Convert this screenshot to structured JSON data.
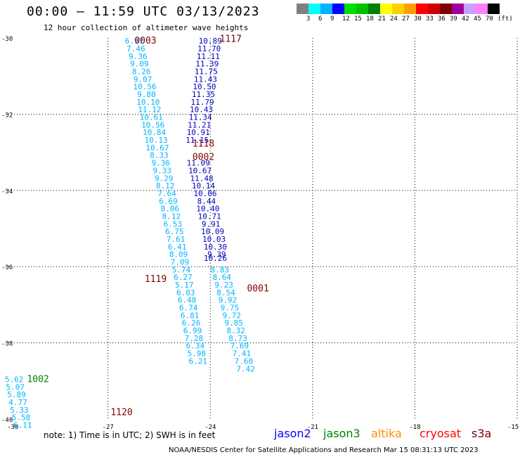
{
  "title": "00:00 – 11:59 UTC 03/13/2023",
  "subtitle": "12 hour collection of altimeter wave heights",
  "colorbar": {
    "colors": [
      "#808080",
      "#00ffff",
      "#00b4ff",
      "#0000ff",
      "#00e000",
      "#00c000",
      "#008000",
      "#ffff00",
      "#ffd000",
      "#ffa000",
      "#ff0000",
      "#d00000",
      "#800000",
      "#a000a0",
      "#c8a0ff",
      "#ff80ff",
      "#000000"
    ],
    "labels": [
      "3",
      "6",
      "9",
      "12",
      "15",
      "18",
      "21",
      "24",
      "27",
      "30",
      "33",
      "36",
      "39",
      "42",
      "45",
      "70"
    ],
    "unit": "(ft)"
  },
  "axes": {
    "lat_labels": [
      "-30",
      "-32",
      "-34",
      "-36",
      "-38",
      "-40"
    ],
    "lon_labels": [
      "-30",
      "-27",
      "-24",
      "-21",
      "-18",
      "-15"
    ]
  },
  "time_labels": [
    {
      "text": "0003",
      "lon": -25.9,
      "lat": -30.15,
      "color": "#800000"
    },
    {
      "text": "1117",
      "lon": -23.4,
      "lat": -30.1,
      "color": "#800000"
    },
    {
      "text": "1118",
      "lon": -24.2,
      "lat": -32.85,
      "color": "#800000"
    },
    {
      "text": "0002",
      "lon": -24.2,
      "lat": -33.2,
      "color": "#800000"
    },
    {
      "text": "1119",
      "lon": -25.6,
      "lat": -36.4,
      "color": "#800000"
    },
    {
      "text": "0001",
      "lon": -22.6,
      "lat": -36.65,
      "color": "#800000"
    },
    {
      "text": "1002",
      "lon": -29.05,
      "lat": -39.03,
      "color": "#008000"
    },
    {
      "text": "1120",
      "lon": -26.6,
      "lat": -39.9,
      "color": "#800000"
    }
  ],
  "tracks": [
    {
      "name": "track-0003-1119",
      "color": "#00b4ff",
      "points": [
        {
          "lon": -26.23,
          "lat": -30.15,
          "v": "6.97"
        },
        {
          "lon": -26.18,
          "lat": -30.35,
          "v": "7.46"
        },
        {
          "lon": -26.12,
          "lat": -30.55,
          "v": "9.36"
        },
        {
          "lon": -26.08,
          "lat": -30.75,
          "v": "9.09"
        },
        {
          "lon": -26.02,
          "lat": -30.95,
          "v": "8.26"
        },
        {
          "lon": -25.98,
          "lat": -31.15,
          "v": "9.07"
        },
        {
          "lon": -25.92,
          "lat": -31.35,
          "v": "10.56"
        },
        {
          "lon": -25.87,
          "lat": -31.55,
          "v": "9.80"
        },
        {
          "lon": -25.82,
          "lat": -31.75,
          "v": "10.10"
        },
        {
          "lon": -25.78,
          "lat": -31.95,
          "v": "11.12"
        },
        {
          "lon": -25.73,
          "lat": -32.15,
          "v": "10.61"
        },
        {
          "lon": -25.68,
          "lat": -32.35,
          "v": "10.56"
        },
        {
          "lon": -25.64,
          "lat": -32.55,
          "v": "10.84"
        },
        {
          "lon": -25.59,
          "lat": -32.75,
          "v": "10.13"
        },
        {
          "lon": -25.55,
          "lat": -32.95,
          "v": "10.67"
        },
        {
          "lon": -25.5,
          "lat": -33.15,
          "v": "8.33"
        },
        {
          "lon": -25.45,
          "lat": -33.35,
          "v": "9.36"
        },
        {
          "lon": -25.41,
          "lat": -33.55,
          "v": "9.33"
        },
        {
          "lon": -25.36,
          "lat": -33.75,
          "v": "9.29"
        },
        {
          "lon": -25.32,
          "lat": -33.95,
          "v": "8.12"
        },
        {
          "lon": -25.27,
          "lat": -34.15,
          "v": "7.64"
        },
        {
          "lon": -25.23,
          "lat": -34.35,
          "v": "6.69"
        },
        {
          "lon": -25.18,
          "lat": -34.55,
          "v": "8.06"
        },
        {
          "lon": -25.14,
          "lat": -34.75,
          "v": "8.12"
        },
        {
          "lon": -25.1,
          "lat": -34.95,
          "v": "6.53"
        },
        {
          "lon": -25.05,
          "lat": -35.15,
          "v": "6.75"
        },
        {
          "lon": -25.01,
          "lat": -35.35,
          "v": "7.61"
        },
        {
          "lon": -24.97,
          "lat": -35.55,
          "v": "6.41"
        },
        {
          "lon": -24.93,
          "lat": -35.75,
          "v": "8.09"
        },
        {
          "lon": -24.89,
          "lat": -35.95,
          "v": "7.09"
        },
        {
          "lon": -24.85,
          "lat": -36.15,
          "v": "5.74"
        },
        {
          "lon": -24.8,
          "lat": -36.35,
          "v": "6.27"
        },
        {
          "lon": -24.76,
          "lat": -36.55,
          "v": "5.17"
        },
        {
          "lon": -24.72,
          "lat": -36.75,
          "v": "6.03"
        },
        {
          "lon": -24.68,
          "lat": -36.95,
          "v": "6.48"
        },
        {
          "lon": -24.64,
          "lat": -37.15,
          "v": "6.74"
        },
        {
          "lon": -24.6,
          "lat": -37.35,
          "v": "6.81"
        },
        {
          "lon": -24.56,
          "lat": -37.55,
          "v": "6.26"
        },
        {
          "lon": -24.52,
          "lat": -37.75,
          "v": "6.99"
        },
        {
          "lon": -24.48,
          "lat": -37.95,
          "v": "7.28"
        },
        {
          "lon": -24.44,
          "lat": -38.15,
          "v": "6.34"
        },
        {
          "lon": -24.4,
          "lat": -38.35,
          "v": "5.98"
        },
        {
          "lon": -24.36,
          "lat": -38.55,
          "v": "6.21"
        }
      ]
    },
    {
      "name": "track-1117-0001",
      "color": "#0000c0",
      "points": [
        {
          "lon": -24.0,
          "lat": -30.15,
          "v": "10.89"
        },
        {
          "lon": -24.03,
          "lat": -30.35,
          "v": "11.70"
        },
        {
          "lon": -24.06,
          "lat": -30.55,
          "v": "11.11"
        },
        {
          "lon": -24.09,
          "lat": -30.75,
          "v": "11.39"
        },
        {
          "lon": -24.12,
          "lat": -30.95,
          "v": "11.75"
        },
        {
          "lon": -24.14,
          "lat": -31.15,
          "v": "11.43"
        },
        {
          "lon": -24.17,
          "lat": -31.35,
          "v": "10.50"
        },
        {
          "lon": -24.2,
          "lat": -31.55,
          "v": "11.35"
        },
        {
          "lon": -24.23,
          "lat": -31.75,
          "v": "11.79"
        },
        {
          "lon": -24.26,
          "lat": -31.95,
          "v": "10.43"
        },
        {
          "lon": -24.29,
          "lat": -32.15,
          "v": "11.34"
        },
        {
          "lon": -24.32,
          "lat": -32.35,
          "v": "11.21"
        },
        {
          "lon": -24.35,
          "lat": -32.55,
          "v": "10.91"
        },
        {
          "lon": -24.38,
          "lat": -32.75,
          "v": "11.15"
        },
        {
          "lon": -24.35,
          "lat": -33.35,
          "v": "11.09"
        },
        {
          "lon": -24.3,
          "lat": -33.55,
          "v": "10.67"
        },
        {
          "lon": -24.25,
          "lat": -33.75,
          "v": "11.48"
        },
        {
          "lon": -24.2,
          "lat": -33.95,
          "v": "10.14"
        },
        {
          "lon": -24.15,
          "lat": -34.15,
          "v": "10.06"
        },
        {
          "lon": -24.11,
          "lat": -34.35,
          "v": "8.44"
        },
        {
          "lon": -24.07,
          "lat": -34.55,
          "v": "10.40"
        },
        {
          "lon": -24.02,
          "lat": -34.75,
          "v": "10.71"
        },
        {
          "lon": -23.98,
          "lat": -34.95,
          "v": "9.91"
        },
        {
          "lon": -23.93,
          "lat": -35.15,
          "v": "10.09"
        },
        {
          "lon": -23.89,
          "lat": -35.35,
          "v": "10.03"
        },
        {
          "lon": -23.85,
          "lat": -35.55,
          "v": "10.30"
        },
        {
          "lon": -23.81,
          "lat": -35.75,
          "v": "9.39"
        },
        {
          "lon": -23.85,
          "lat": -35.85,
          "v": "10.26"
        }
      ]
    },
    {
      "name": "track-0001-1118",
      "color": "#00b4ff",
      "points": [
        {
          "lon": -23.72,
          "lat": -36.15,
          "v": "8.83"
        },
        {
          "lon": -23.66,
          "lat": -36.35,
          "v": "8.64"
        },
        {
          "lon": -23.6,
          "lat": -36.55,
          "v": "9.23"
        },
        {
          "lon": -23.54,
          "lat": -36.75,
          "v": "8.54"
        },
        {
          "lon": -23.49,
          "lat": -36.95,
          "v": "9.92"
        },
        {
          "lon": -23.43,
          "lat": -37.15,
          "v": "9.75"
        },
        {
          "lon": -23.37,
          "lat": -37.35,
          "v": "9.72"
        },
        {
          "lon": -23.31,
          "lat": -37.55,
          "v": "9.85"
        },
        {
          "lon": -23.25,
          "lat": -37.75,
          "v": "8.32"
        },
        {
          "lon": -23.19,
          "lat": -37.95,
          "v": "8.73"
        },
        {
          "lon": -23.14,
          "lat": -38.15,
          "v": "7.69"
        },
        {
          "lon": -23.08,
          "lat": -38.35,
          "v": "7.41"
        },
        {
          "lon": -23.02,
          "lat": -38.55,
          "v": "7.60"
        },
        {
          "lon": -22.96,
          "lat": -38.75,
          "v": "7.42"
        }
      ]
    },
    {
      "name": "track-1002",
      "color": "#00b4ff",
      "points": [
        {
          "lon": -29.75,
          "lat": -39.03,
          "v": "5.62"
        },
        {
          "lon": -29.72,
          "lat": -39.23,
          "v": "5.07"
        },
        {
          "lon": -29.68,
          "lat": -39.43,
          "v": "5.89"
        },
        {
          "lon": -29.64,
          "lat": -39.63,
          "v": "4.77"
        },
        {
          "lon": -29.6,
          "lat": -39.83,
          "v": "5.33"
        },
        {
          "lon": -29.55,
          "lat": -40.03,
          "v": "5.58"
        },
        {
          "lon": -29.5,
          "lat": -40.23,
          "v": "6.11"
        }
      ]
    }
  ],
  "note": "note: 1) Time is in UTC; 2) SWH is in feet",
  "legend": [
    {
      "name": "jason2",
      "color": "#0000ff"
    },
    {
      "name": "jason3",
      "color": "#008000"
    },
    {
      "name": "altika",
      "color": "#ff8c00"
    },
    {
      "name": "cryosat",
      "color": "#ff0000"
    },
    {
      "name": "s3a",
      "color": "#800000"
    }
  ],
  "credit": "NOAA/NESDIS Center for Satellite Applications and Research   Mar 15 08:31:13 UTC 2023"
}
